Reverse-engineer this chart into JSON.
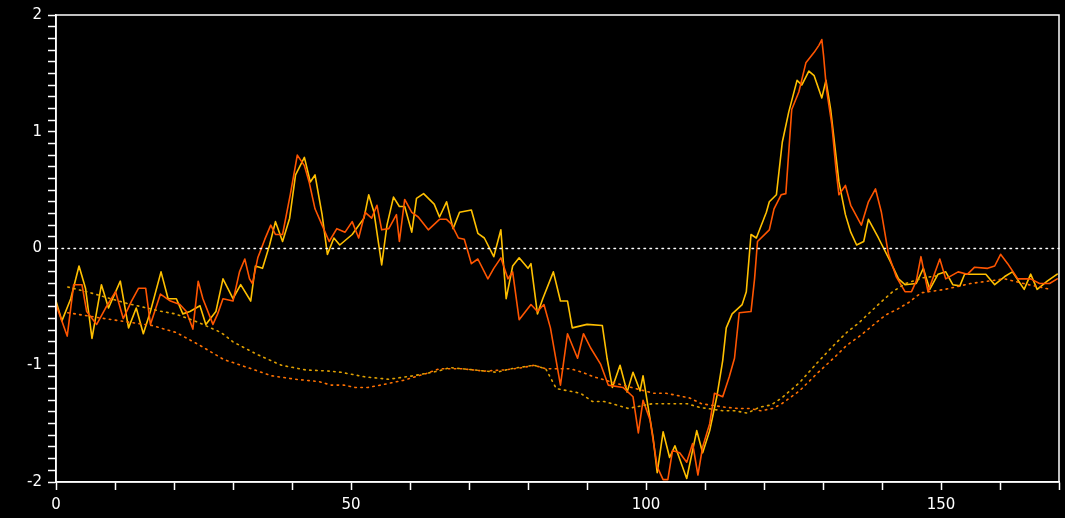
{
  "chart_data": {
    "type": "line",
    "xlim": [
      0,
      170
    ],
    "ylim": [
      -2,
      2
    ],
    "xticks": [
      0,
      {
        "value": 10,
        "label": null
      },
      {
        "value": 20,
        "label": null
      },
      {
        "value": 30,
        "label": null
      },
      {
        "value": 40,
        "label": null
      },
      50,
      {
        "value": 60,
        "label": null
      },
      {
        "value": 70,
        "label": null
      },
      {
        "value": 80,
        "label": null
      },
      {
        "value": 90,
        "label": null
      },
      100,
      {
        "value": 110,
        "label": null
      },
      {
        "value": 120,
        "label": null
      },
      {
        "value": 130,
        "label": null
      },
      {
        "value": 140,
        "label": null
      },
      150,
      {
        "value": 160,
        "label": null
      },
      {
        "value": 170,
        "label": null
      }
    ],
    "yticks": [
      -2,
      {
        "value": -1.9,
        "label": null
      },
      {
        "value": -1.8,
        "label": null
      },
      {
        "value": -1.7,
        "label": null
      },
      {
        "value": -1.6,
        "label": null
      },
      {
        "value": -1.5,
        "label": null
      },
      {
        "value": -1.4,
        "label": null
      },
      {
        "value": -1.3,
        "label": null
      },
      {
        "value": -1.2,
        "label": null
      },
      {
        "value": -1.1,
        "label": null
      },
      -1,
      {
        "value": -0.9,
        "label": null
      },
      {
        "value": -0.8,
        "label": null
      },
      {
        "value": -0.7,
        "label": null
      },
      {
        "value": -0.6,
        "label": null
      },
      {
        "value": -0.5,
        "label": null
      },
      {
        "value": -0.4,
        "label": null
      },
      {
        "value": -0.3,
        "label": null
      },
      {
        "value": -0.2,
        "label": null
      },
      {
        "value": -0.1,
        "label": null
      },
      0,
      {
        "value": 0.1,
        "label": null
      },
      {
        "value": 0.2,
        "label": null
      },
      {
        "value": 0.3,
        "label": null
      },
      {
        "value": 0.4,
        "label": null
      },
      {
        "value": 0.5,
        "label": null
      },
      {
        "value": 0.6,
        "label": null
      },
      {
        "value": 0.7,
        "label": null
      },
      {
        "value": 0.8,
        "label": null
      },
      {
        "value": 0.9,
        "label": null
      },
      1,
      {
        "value": 1.1,
        "label": null
      },
      {
        "value": 1.2,
        "label": null
      },
      {
        "value": 1.3,
        "label": null
      },
      {
        "value": 1.4,
        "label": null
      },
      {
        "value": 1.5,
        "label": null
      },
      {
        "value": 1.6,
        "label": null
      },
      {
        "value": 1.7,
        "label": null
      },
      {
        "value": 1.8,
        "label": null
      },
      {
        "value": 1.9,
        "label": null
      },
      2
    ],
    "grid": false,
    "legend": false,
    "marker": "none",
    "ref_lines": [
      {
        "axis": "y",
        "value": 0,
        "color": "#ffffff",
        "line_style": "dotted"
      }
    ],
    "series": [
      {
        "color": "#e0a000",
        "line_style": "dotted",
        "x": [
          2,
          5.9,
          12,
          18,
          20.2,
          24,
          28,
          30,
          34.2,
          38.2,
          42.3,
          46.3,
          48.3,
          52.4,
          56.4,
          60.6,
          64.8,
          66.7,
          70.9,
          74.7,
          77.1,
          81,
          83,
          84.8,
          86.9,
          88.9,
          90.9,
          92.9,
          95,
          97,
          101,
          103,
          105.2,
          107,
          109,
          113,
          115,
          117.2,
          119.2,
          121.2,
          123,
          126,
          129,
          132,
          134,
          136,
          137.9,
          139.8,
          141.8,
          144,
          147,
          150
        ],
        "values": [
          -0.33,
          -0.38,
          -0.47,
          -0.54,
          -0.56,
          -0.63,
          -0.72,
          -0.8,
          -0.91,
          -1.0,
          -1.04,
          -1.05,
          -1.06,
          -1.1,
          -1.12,
          -1.09,
          -1.05,
          -1.02,
          -1.04,
          -1.06,
          -1.03,
          -1.0,
          -1.03,
          -1.2,
          -1.22,
          -1.24,
          -1.31,
          -1.31,
          -1.34,
          -1.37,
          -1.33,
          -1.33,
          -1.33,
          -1.33,
          -1.36,
          -1.39,
          -1.39,
          -1.41,
          -1.36,
          -1.34,
          -1.28,
          -1.15,
          -0.98,
          -0.82,
          -0.72,
          -0.64,
          -0.55,
          -0.46,
          -0.37,
          -0.3,
          -0.25,
          -0.23
        ]
      },
      {
        "color": "#ff7000",
        "line_style": "dotted",
        "x": [
          2,
          8.2,
          16.3,
          20.4,
          24.4,
          28.4,
          32.5,
          36.5,
          40.6,
          44.6,
          46.6,
          48.8,
          50.7,
          52.9,
          55,
          56.9,
          58.8,
          60.8,
          62.8,
          65,
          68.7,
          72.6,
          76,
          79.1,
          81,
          83,
          87.2,
          89.2,
          91.2,
          96,
          101.3,
          103.4,
          105.4,
          107.4,
          109.4,
          113.5,
          115.5,
          117.5,
          119.5,
          121.5,
          123,
          126,
          129,
          132,
          134,
          136.5,
          138.4,
          140.6,
          142.6,
          144.6,
          146.6,
          150.7,
          155,
          160.8,
          164,
          168.5
        ],
        "values": [
          -0.55,
          -0.6,
          -0.66,
          -0.72,
          -0.83,
          -0.95,
          -1.02,
          -1.09,
          -1.12,
          -1.14,
          -1.17,
          -1.17,
          -1.19,
          -1.19,
          -1.17,
          -1.15,
          -1.13,
          -1.1,
          -1.07,
          -1.03,
          -1.03,
          -1.05,
          -1.04,
          -1.02,
          -1.0,
          -1.03,
          -1.03,
          -1.06,
          -1.1,
          -1.17,
          -1.24,
          -1.24,
          -1.26,
          -1.28,
          -1.33,
          -1.36,
          -1.37,
          -1.37,
          -1.39,
          -1.37,
          -1.33,
          -1.22,
          -1.07,
          -0.93,
          -0.83,
          -0.74,
          -0.66,
          -0.57,
          -0.52,
          -0.46,
          -0.38,
          -0.35,
          -0.3,
          -0.26,
          -0.3,
          -0.35
        ]
      },
      {
        "color": "#ff5500",
        "x": [
          0,
          1.9,
          3,
          4.4,
          5.2,
          6.9,
          8.4,
          10.1,
          11.4,
          12.8,
          14,
          15.2,
          16,
          17.7,
          19.4,
          21,
          22.1,
          23.2,
          24.1,
          24.9,
          26.6,
          27.4,
          28.3,
          30,
          31.1,
          32,
          32.8,
          33.3,
          34.2,
          35.4,
          36.4,
          37.2,
          38.4,
          39.7,
          40.9,
          42.1,
          42.9,
          43.9,
          45.1,
          46.3,
          47.6,
          49,
          50.2,
          51.3,
          52.4,
          53.5,
          54.4,
          55.2,
          56.4,
          57.7,
          58.2,
          59.1,
          60.3,
          61.4,
          63.1,
          65,
          66.2,
          67,
          68.2,
          69.2,
          70.4,
          71.5,
          73.2,
          74.2,
          75.4,
          76.6,
          77.4,
          78.5,
          80.5,
          81.6,
          82.7,
          83.8,
          85.5,
          86.7,
          88.4,
          89.4,
          90.6,
          92.3,
          93.6,
          96.1,
          97.8,
          98.7,
          99.5,
          100.7,
          101.9,
          102.9,
          103.7,
          104.5,
          105.7,
          106.9,
          107.9,
          108.8,
          109.6,
          110.8,
          111.6,
          113,
          114.1,
          115,
          115.8,
          117.8,
          118.4,
          118.9,
          120.9,
          121.7,
          122.9,
          123.7,
          124.7,
          125.9,
          127.1,
          128.5,
          129.3,
          129.8,
          130.1,
          130.6,
          131.5,
          132.2,
          132.7,
          133.8,
          134.7,
          136.5,
          137.7,
          138.9,
          139.9,
          141.1,
          142.4,
          143.9,
          145,
          145.8,
          146.6,
          147.8,
          149.8,
          150.8,
          152.9,
          154.5,
          155.7,
          157.9,
          159.1,
          160.1,
          161.3,
          163,
          165.2,
          166.7,
          168.4,
          169.7
        ],
        "values": [
          -0.48,
          -0.75,
          -0.31,
          -0.31,
          -0.54,
          -0.65,
          -0.51,
          -0.37,
          -0.6,
          -0.45,
          -0.34,
          -0.34,
          -0.65,
          -0.39,
          -0.45,
          -0.48,
          -0.54,
          -0.69,
          -0.28,
          -0.43,
          -0.65,
          -0.56,
          -0.43,
          -0.45,
          -0.2,
          -0.09,
          -0.26,
          -0.3,
          -0.08,
          0.08,
          0.2,
          0.12,
          0.12,
          0.46,
          0.8,
          0.71,
          0.57,
          0.34,
          0.2,
          0.06,
          0.17,
          0.14,
          0.23,
          0.09,
          0.31,
          0.26,
          0.37,
          0.16,
          0.17,
          0.29,
          0.06,
          0.42,
          0.31,
          0.27,
          0.16,
          0.25,
          0.25,
          0.21,
          0.09,
          0.08,
          -0.13,
          -0.09,
          -0.26,
          -0.17,
          -0.08,
          -0.26,
          -0.2,
          -0.61,
          -0.48,
          -0.54,
          -0.48,
          -0.68,
          -1.17,
          -0.73,
          -0.94,
          -0.73,
          -0.85,
          -0.99,
          -1.17,
          -1.19,
          -1.27,
          -1.58,
          -1.3,
          -1.47,
          -1.87,
          -1.98,
          -1.98,
          -1.73,
          -1.75,
          -1.83,
          -1.67,
          -1.94,
          -1.7,
          -1.5,
          -1.24,
          -1.27,
          -1.1,
          -0.94,
          -0.55,
          -0.54,
          -0.26,
          0.06,
          0.16,
          0.34,
          0.46,
          0.47,
          1.19,
          1.34,
          1.59,
          1.68,
          1.74,
          1.79,
          1.65,
          1.36,
          1.06,
          0.68,
          0.46,
          0.54,
          0.37,
          0.2,
          0.4,
          0.51,
          0.31,
          -0.05,
          -0.24,
          -0.37,
          -0.37,
          -0.28,
          -0.07,
          -0.37,
          -0.09,
          -0.26,
          -0.2,
          -0.22,
          -0.16,
          -0.17,
          -0.15,
          -0.05,
          -0.13,
          -0.26,
          -0.26,
          -0.3,
          -0.3,
          -0.26
        ]
      },
      {
        "color": "#ffc000",
        "x": [
          0,
          1,
          2.5,
          3.9,
          5,
          6.1,
          7.7,
          8.9,
          10.9,
          12.3,
          13.6,
          14.8,
          16,
          17.8,
          19,
          20.4,
          21.5,
          22.7,
          24.4,
          25.4,
          27.1,
          28.3,
          30,
          31.3,
          33,
          33.8,
          35,
          36.2,
          37.2,
          38.4,
          39.6,
          40.6,
          42.1,
          43.1,
          43.9,
          45.1,
          46,
          47.1,
          48.1,
          50.2,
          52.2,
          53,
          53.9,
          55.2,
          56.1,
          57.2,
          58.2,
          59.1,
          60.3,
          61.1,
          62.3,
          64.1,
          65,
          66.2,
          67.3,
          68.4,
          70.4,
          71.5,
          72.6,
          74.2,
          75.4,
          76.3,
          77.4,
          78.5,
          80,
          80.5,
          81.6,
          82.5,
          84.3,
          85.5,
          86.7,
          87.5,
          90,
          92.6,
          93.4,
          94.3,
          95.6,
          96.8,
          97.8,
          99,
          99.5,
          101.2,
          101.9,
          102.9,
          104,
          104.9,
          106.9,
          108.6,
          109.6,
          110.8,
          112,
          113,
          113.6,
          114.6,
          116.3,
          117,
          117.8,
          118.7,
          120.4,
          120.9,
          122.1,
          123.1,
          124.2,
          125.6,
          126.4,
          127.6,
          128.5,
          129.8,
          130.5,
          131.3,
          132.7,
          133.8,
          134.7,
          135.7,
          136.9,
          137.7,
          139.4,
          141.4,
          142.8,
          143.9,
          145.8,
          147,
          148.1,
          149.5,
          150.8,
          152,
          153.2,
          154,
          156.2,
          157.6,
          159.1,
          160.8,
          162.1,
          164.1,
          165.2,
          166.3,
          168,
          169.7
        ],
        "values": [
          -0.45,
          -0.62,
          -0.43,
          -0.15,
          -0.34,
          -0.77,
          -0.31,
          -0.51,
          -0.28,
          -0.68,
          -0.51,
          -0.73,
          -0.54,
          -0.2,
          -0.43,
          -0.43,
          -0.56,
          -0.54,
          -0.49,
          -0.65,
          -0.54,
          -0.26,
          -0.43,
          -0.31,
          -0.45,
          -0.15,
          -0.17,
          0.03,
          0.23,
          0.06,
          0.26,
          0.63,
          0.78,
          0.57,
          0.63,
          0.29,
          -0.05,
          0.09,
          0.03,
          0.12,
          0.26,
          0.46,
          0.31,
          -0.14,
          0.2,
          0.44,
          0.36,
          0.36,
          0.14,
          0.43,
          0.47,
          0.38,
          0.27,
          0.4,
          0.17,
          0.31,
          0.33,
          0.13,
          0.09,
          -0.07,
          0.16,
          -0.43,
          -0.15,
          -0.08,
          -0.17,
          -0.13,
          -0.56,
          -0.43,
          -0.2,
          -0.45,
          -0.45,
          -0.68,
          -0.65,
          -0.66,
          -0.94,
          -1.19,
          -1.0,
          -1.23,
          -1.06,
          -1.22,
          -1.09,
          -1.62,
          -1.92,
          -1.57,
          -1.79,
          -1.69,
          -1.97,
          -1.56,
          -1.75,
          -1.56,
          -1.27,
          -0.96,
          -0.68,
          -0.56,
          -0.48,
          -0.37,
          0.12,
          0.09,
          0.31,
          0.4,
          0.46,
          0.91,
          1.17,
          1.44,
          1.4,
          1.52,
          1.48,
          1.29,
          1.44,
          1.19,
          0.57,
          0.29,
          0.14,
          0.03,
          0.06,
          0.25,
          0.09,
          -0.11,
          -0.26,
          -0.31,
          -0.3,
          -0.17,
          -0.35,
          -0.22,
          -0.2,
          -0.31,
          -0.32,
          -0.22,
          -0.22,
          -0.22,
          -0.31,
          -0.24,
          -0.2,
          -0.35,
          -0.22,
          -0.35,
          -0.28,
          -0.22
        ]
      }
    ]
  }
}
